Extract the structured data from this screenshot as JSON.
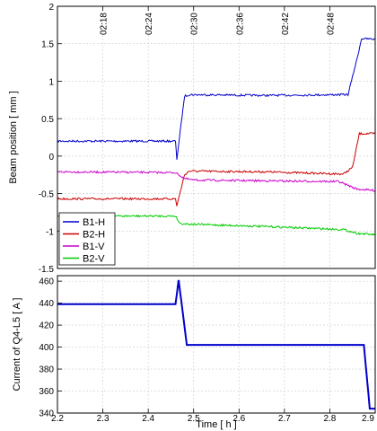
{
  "chart_data": [
    {
      "type": "line",
      "title": "",
      "xlabel": "",
      "ylabel": "Beam position [ mm ]",
      "xlim": [
        2.2,
        2.9
      ],
      "ylim": [
        -1.5,
        2
      ],
      "yticks": [
        -1.5,
        -1,
        -0.5,
        0,
        0.5,
        1,
        1.5,
        2
      ],
      "top_axis_ticks": [
        "02:18",
        "02:24",
        "02:30",
        "02:36",
        "02:42",
        "02:48"
      ],
      "top_axis_tick_hours": [
        2.3,
        2.4,
        2.5,
        2.6,
        2.7,
        2.8
      ],
      "grid": true,
      "legend": "bottom-left",
      "series": [
        {
          "name": "B1-H",
          "color": "#0000cc",
          "x": [
            2.2,
            2.46,
            2.463,
            2.48,
            2.49,
            2.66,
            2.82,
            2.84,
            2.86,
            2.87,
            2.9
          ],
          "y": [
            0.2,
            0.2,
            -0.04,
            0.8,
            0.82,
            0.81,
            0.82,
            0.82,
            1.3,
            1.57,
            1.56
          ]
        },
        {
          "name": "B2-H",
          "color": "#cc0000",
          "x": [
            2.2,
            2.46,
            2.463,
            2.48,
            2.49,
            2.66,
            2.83,
            2.85,
            2.865,
            2.9
          ],
          "y": [
            -0.57,
            -0.57,
            -0.66,
            -0.25,
            -0.2,
            -0.21,
            -0.24,
            -0.15,
            0.3,
            0.3
          ]
        },
        {
          "name": "B1-V",
          "color": "#cc00cc",
          "x": [
            2.2,
            2.46,
            2.48,
            2.5,
            2.66,
            2.82,
            2.86,
            2.9
          ],
          "y": [
            -0.21,
            -0.22,
            -0.3,
            -0.32,
            -0.33,
            -0.34,
            -0.44,
            -0.46
          ]
        },
        {
          "name": "B2-V",
          "color": "#00cc00",
          "x": [
            2.2,
            2.46,
            2.47,
            2.5,
            2.66,
            2.83,
            2.86,
            2.9
          ],
          "y": [
            -0.8,
            -0.8,
            -0.9,
            -0.91,
            -0.94,
            -0.98,
            -1.03,
            -1.05
          ]
        }
      ]
    },
    {
      "type": "line",
      "title": "",
      "xlabel": "Time [ h ]",
      "ylabel": "Current of Q4-L5 [ A ]",
      "xlim": [
        2.2,
        2.9
      ],
      "ylim": [
        340,
        465
      ],
      "xticks": [
        "2.2",
        "2.3",
        "2.4",
        "2.5",
        "2.6",
        "2.7",
        "2.8",
        "2.9"
      ],
      "yticks": [
        340,
        360,
        380,
        400,
        420,
        440,
        460
      ],
      "grid": true,
      "series": [
        {
          "color": "#0000cc",
          "x": [
            2.2,
            2.46,
            2.467,
            2.485,
            2.875,
            2.888,
            2.9
          ],
          "y": [
            439,
            439,
            461,
            402,
            402,
            344,
            344
          ]
        }
      ]
    }
  ]
}
